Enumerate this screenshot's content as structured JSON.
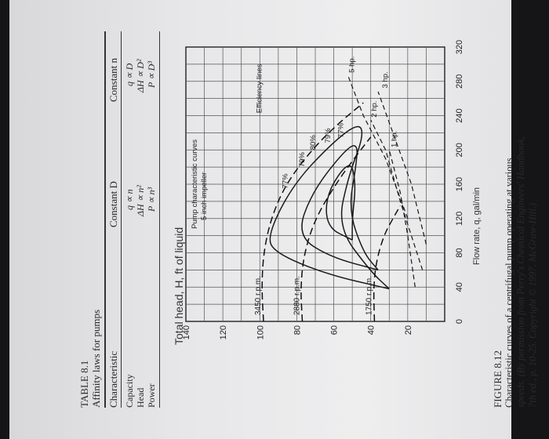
{
  "table": {
    "title": "TABLE 8.1",
    "subtitle": "Affinity laws for pumps",
    "headers": [
      "Characteristic",
      "Constant D",
      "Constant n"
    ],
    "rows": [
      {
        "label": "Capacity",
        "const_d": "q ∝ n",
        "const_n": "q ∝ D"
      },
      {
        "label": "Head",
        "const_d": "ΔH ∝ n²",
        "const_n": "ΔH ∝ D²"
      },
      {
        "label": "Power",
        "const_d": "P ∝ n³",
        "const_n": "P ∝ D³"
      }
    ]
  },
  "figure": {
    "label": "FIGURE 8.12",
    "caption_line1": "Characteristic curves of a centrifugal pump operating at various",
    "caption_line2": "speeds. (By permission from Perry's Chemical Engineers' Handbook,",
    "caption_line3": "7th ed., p. 10-25. Copyright © 1997, McGraw-Hill.)"
  },
  "chart_data": {
    "type": "line",
    "xlabel": "Flow rate, q, gal/min",
    "ylabel": "Total head, H, ft of liquid",
    "xlim": [
      0,
      320
    ],
    "ylim": [
      0,
      140
    ],
    "x_ticks": [
      "0",
      "40",
      "80",
      "120",
      "160",
      "200",
      "240",
      "280",
      "320"
    ],
    "y_ticks": [
      "20",
      "40",
      "60",
      "80",
      "100",
      "120",
      "140"
    ],
    "grid": true,
    "annotations": [
      "Pump characteristic curves",
      "5 inch impeller",
      "Efficiency lines"
    ],
    "head_curves": [
      {
        "name": "3450 r.p.m.",
        "points": [
          [
            0,
            98
          ],
          [
            40,
            99
          ],
          [
            80,
            98
          ],
          [
            120,
            94
          ],
          [
            160,
            86
          ],
          [
            200,
            72
          ],
          [
            230,
            58
          ],
          [
            255,
            44
          ]
        ]
      },
      {
        "name": "2880 r.p.m.",
        "points": [
          [
            0,
            77
          ],
          [
            40,
            78
          ],
          [
            80,
            76
          ],
          [
            120,
            70
          ],
          [
            160,
            59
          ],
          [
            190,
            49
          ],
          [
            215,
            40
          ]
        ]
      },
      {
        "name": "1750 r.p.m.",
        "points": [
          [
            0,
            38
          ],
          [
            40,
            38.5
          ],
          [
            70,
            37
          ],
          [
            100,
            33
          ],
          [
            120,
            28
          ],
          [
            135,
            24
          ]
        ]
      }
    ],
    "efficiency_lines": [
      {
        "label": "77%",
        "points": [
          [
            38,
            30
          ],
          [
            55,
            64
          ],
          [
            80,
            92
          ],
          [
            100,
            96
          ],
          [
            160,
            82
          ],
          [
            210,
            60
          ],
          [
            232,
            46
          ],
          [
            215,
            44
          ],
          [
            170,
            52
          ],
          [
            110,
            58
          ],
          [
            58,
            40
          ],
          [
            38,
            30
          ]
        ]
      },
      {
        "label": "79%",
        "points": [
          [
            60,
            36
          ],
          [
            75,
            62
          ],
          [
            100,
            80
          ],
          [
            150,
            72
          ],
          [
            200,
            54
          ],
          [
            208,
            47
          ],
          [
            180,
            48
          ],
          [
            130,
            52
          ],
          [
            80,
            44
          ],
          [
            60,
            36
          ]
        ]
      },
      {
        "label": "80%",
        "points": [
          [
            95,
            50
          ],
          [
            110,
            64
          ],
          [
            150,
            64
          ],
          [
            190,
            51
          ],
          [
            160,
            48
          ],
          [
            120,
            50
          ],
          [
            95,
            50
          ]
        ]
      }
    ],
    "efficiency_labels": [
      {
        "text": "77%",
        "x": 155,
        "y": 85
      },
      {
        "text": "79%",
        "x": 180,
        "y": 76
      },
      {
        "text": "80%",
        "x": 200,
        "y": 70
      },
      {
        "text": "79%",
        "x": 208,
        "y": 62
      },
      {
        "text": "77%",
        "x": 214,
        "y": 55
      }
    ],
    "power_lines": [
      {
        "label": "1 hp.",
        "points": [
          [
            40,
            16
          ],
          [
            100,
            20
          ],
          [
            150,
            24
          ],
          [
            200,
            30
          ]
        ]
      },
      {
        "label": "2 hp.",
        "points": [
          [
            60,
            12
          ],
          [
            140,
            24
          ],
          [
            200,
            32
          ],
          [
            235,
            40
          ]
        ]
      },
      {
        "label": "3 hp.",
        "points": [
          [
            90,
            10
          ],
          [
            160,
            18
          ],
          [
            220,
            28
          ],
          [
            268,
            36
          ]
        ]
      },
      {
        "label": "5 hp.",
        "points": [
          [
            120,
            20
          ],
          [
            190,
            32
          ],
          [
            240,
            44
          ],
          [
            285,
            52
          ]
        ]
      }
    ],
    "power_labels": [
      {
        "text": "1 hp.",
        "x": 203,
        "y": 26
      },
      {
        "text": "2 hp.",
        "x": 238,
        "y": 37
      },
      {
        "text": "3 hp.",
        "x": 272,
        "y": 31
      },
      {
        "text": "5 hp.",
        "x": 290,
        "y": 49
      }
    ]
  }
}
